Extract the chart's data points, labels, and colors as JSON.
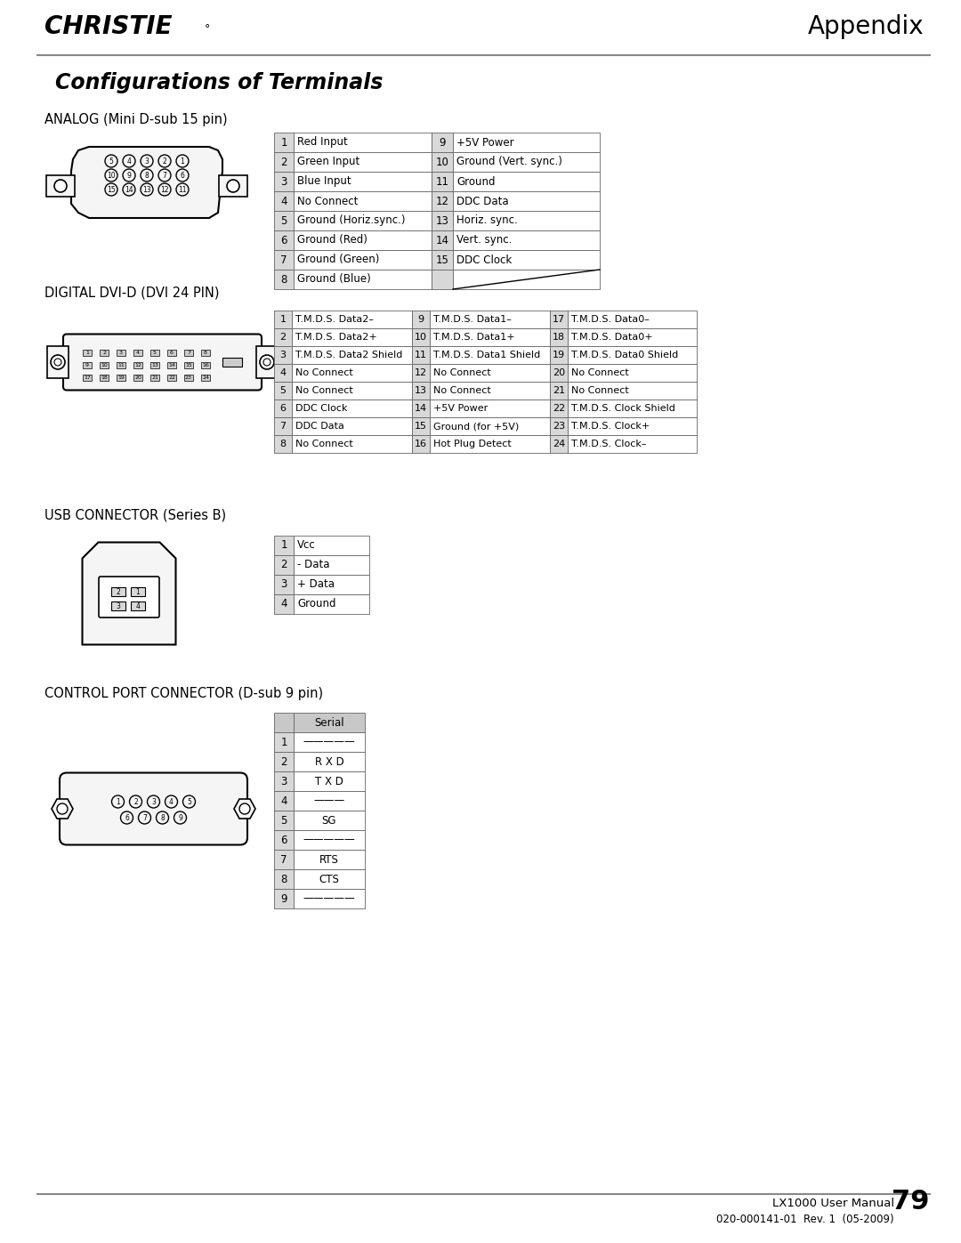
{
  "bg_color": "#ffffff",
  "christie_text": "CHRISTIE®",
  "appendix_text": "Appendix",
  "page_title": "Configurations of Terminals",
  "section1_title": "ANALOG (Mini D-sub 15 pin)",
  "section2_title": "DIGITAL DVI-D (DVI 24 PIN)",
  "section3_title": "USB CONNECTOR (Series B)",
  "section4_title": "CONTROL PORT CONNECTOR (D-sub 9 pin)",
  "footer_text1": "LX1000 User Manual",
  "footer_text2": "020-000141-01  Rev. 1  (05-2009)",
  "page_num": "79",
  "analog_left": [
    [
      "1",
      "Red Input"
    ],
    [
      "2",
      "Green Input"
    ],
    [
      "3",
      "Blue Input"
    ],
    [
      "4",
      "No Connect"
    ],
    [
      "5",
      "Ground (Horiz.sync.)"
    ],
    [
      "6",
      "Ground (Red)"
    ],
    [
      "7",
      "Ground (Green)"
    ],
    [
      "8",
      "Ground (Blue)"
    ]
  ],
  "analog_right": [
    [
      "9",
      "+5V Power"
    ],
    [
      "10",
      "Ground (Vert. sync.)"
    ],
    [
      "11",
      "Ground"
    ],
    [
      "12",
      "DDC Data"
    ],
    [
      "13",
      "Horiz. sync."
    ],
    [
      "14",
      "Vert. sync."
    ],
    [
      "15",
      "DDC Clock"
    ],
    [
      "",
      ""
    ]
  ],
  "dvi_col1": [
    [
      "1",
      "T.M.D.S. Data2–"
    ],
    [
      "2",
      "T.M.D.S. Data2+"
    ],
    [
      "3",
      "T.M.D.S. Data2 Shield"
    ],
    [
      "4",
      "No Connect"
    ],
    [
      "5",
      "No Connect"
    ],
    [
      "6",
      "DDC Clock"
    ],
    [
      "7",
      "DDC Data"
    ],
    [
      "8",
      "No Connect"
    ]
  ],
  "dvi_col2": [
    [
      "9",
      "T.M.D.S. Data1–"
    ],
    [
      "10",
      "T.M.D.S. Data1+"
    ],
    [
      "11",
      "T.M.D.S. Data1 Shield"
    ],
    [
      "12",
      "No Connect"
    ],
    [
      "13",
      "No Connect"
    ],
    [
      "14",
      "+5V Power"
    ],
    [
      "15",
      "Ground (for +5V)"
    ],
    [
      "16",
      "Hot Plug Detect"
    ]
  ],
  "dvi_col3": [
    [
      "17",
      "T.M.D.S. Data0–"
    ],
    [
      "18",
      "T.M.D.S. Data0+"
    ],
    [
      "19",
      "T.M.D.S. Data0 Shield"
    ],
    [
      "20",
      "No Connect"
    ],
    [
      "21",
      "No Connect"
    ],
    [
      "22",
      "T.M.D.S. Clock Shield"
    ],
    [
      "23",
      "T.M.D.S. Clock+"
    ],
    [
      "24",
      "T.M.D.S. Clock–"
    ]
  ],
  "usb_rows": [
    [
      "1",
      "Vcc"
    ],
    [
      "2",
      "- Data"
    ],
    [
      "3",
      "+ Data"
    ],
    [
      "4",
      "Ground"
    ]
  ],
  "ctrl_header": "Serial",
  "ctrl_rows": [
    [
      "1",
      "—————"
    ],
    [
      "2",
      "R X D"
    ],
    [
      "3",
      "T X D"
    ],
    [
      "4",
      "———"
    ],
    [
      "5",
      "SG"
    ],
    [
      "6",
      "—————"
    ],
    [
      "7",
      "RTS"
    ],
    [
      "8",
      "CTS"
    ],
    [
      "9",
      "—————"
    ]
  ],
  "table_border": "#666666",
  "num_bg": "#d8d8d8",
  "header_bg": "#c8c8c8",
  "line_color": "#888888"
}
